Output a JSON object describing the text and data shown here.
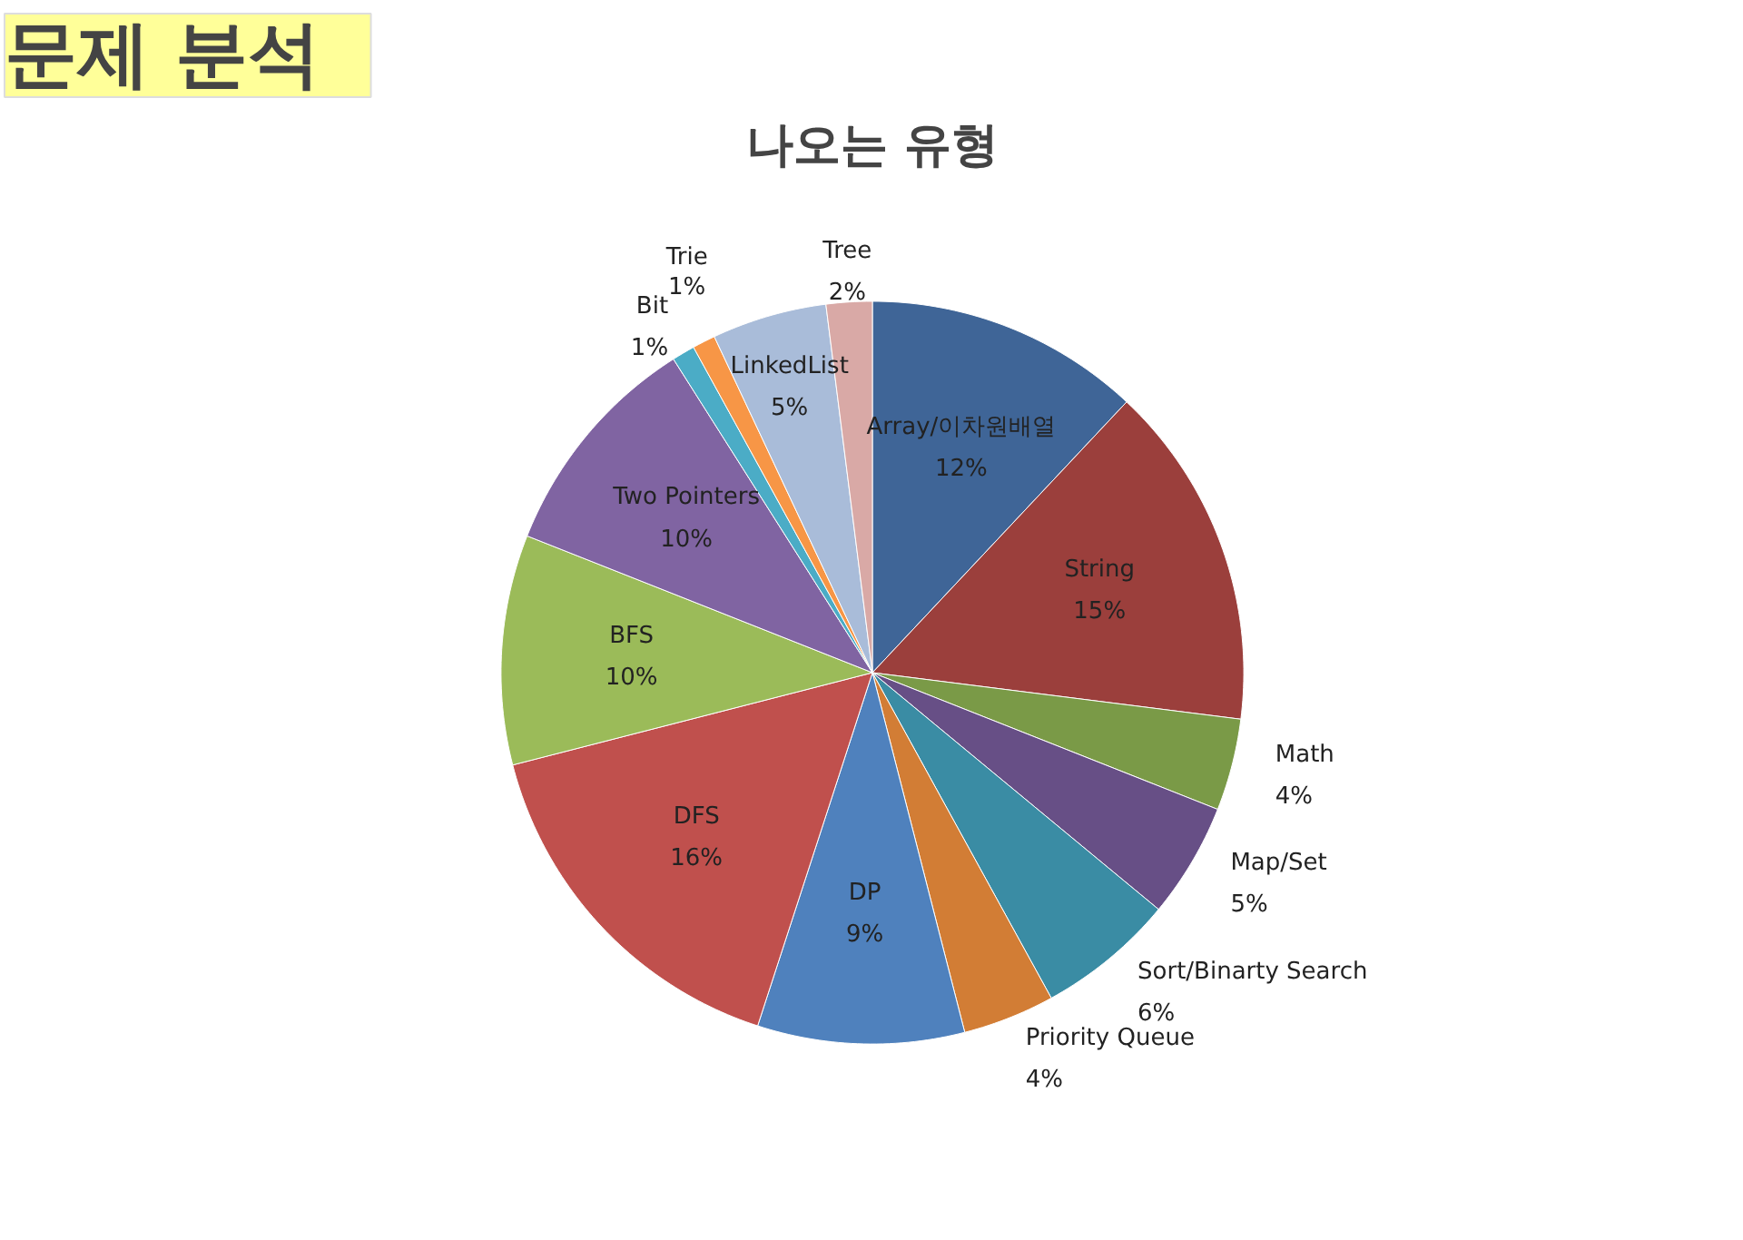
{
  "chart_data": {
    "type": "pie",
    "title": "문제 분석",
    "subtitle": "나오는 유형",
    "categories": [
      "Array/이차원배열",
      "String",
      "Math",
      "Map/Set",
      "Sort/Binarty Search",
      "Priority Queue",
      "DP",
      "DFS",
      "BFS",
      "Two Pointers",
      "Bit",
      "Trie",
      "LinkedList",
      "Tree"
    ],
    "values": [
      12,
      15,
      4,
      5,
      6,
      4,
      9,
      16,
      10,
      10,
      1,
      1,
      5,
      2
    ],
    "value_labels": [
      "12%",
      "15%",
      "4%",
      "5%",
      "6%",
      "4%",
      "9%",
      "16%",
      "10%",
      "10%",
      "1%",
      "1%",
      "5%",
      "2%"
    ],
    "colors": [
      "#3f6597",
      "#9b3f3c",
      "#7a9a47",
      "#674f86",
      "#3a8ca4",
      "#d27d35",
      "#4f81bd",
      "#c0504d",
      "#9bbb59",
      "#8064a2",
      "#4bacc6",
      "#f79646",
      "#a9bcd9",
      "#d9a9a6"
    ]
  }
}
